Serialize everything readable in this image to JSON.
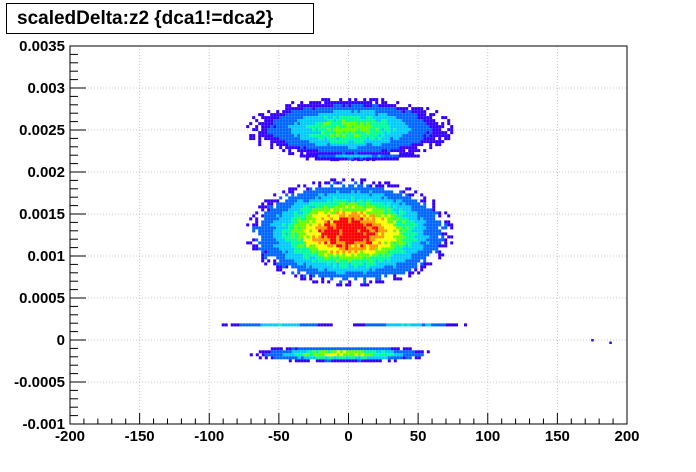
{
  "chart_data": {
    "type": "heatmap",
    "title": "scaledDelta:z2 {dca1!=dca2}",
    "xlabel": "",
    "ylabel": "",
    "xlim": [
      -200,
      200
    ],
    "ylim": [
      -0.001,
      0.0035
    ],
    "x_ticks": [
      -200,
      -150,
      -100,
      -50,
      0,
      50,
      100,
      150,
      200
    ],
    "x_tick_labels": [
      "-200",
      "-150",
      "-100",
      "-50",
      "0",
      "50",
      "100",
      "150",
      "200"
    ],
    "y_ticks": [
      -0.001,
      -0.0005,
      0,
      0.0005,
      0.001,
      0.0015,
      0.002,
      0.0025,
      0.003,
      0.0035
    ],
    "y_tick_labels": [
      "-0.001",
      "-0.0005",
      "0",
      "0.0005",
      "0.001",
      "0.0015",
      "0.002",
      "0.0025",
      "0.003",
      "0.0035"
    ],
    "grid": true,
    "colormap": [
      "#3300ff",
      "#0066ff",
      "#00ccff",
      "#00ff99",
      "#66ff00",
      "#ffff00",
      "#ff9900",
      "#ff0000"
    ],
    "clusters": [
      {
        "x_center": 0,
        "x_half_width": 70,
        "y_center": 0.00253,
        "y_half_height": 0.00035,
        "peak": 0.55
      },
      {
        "x_center": 5,
        "x_half_width": 45,
        "y_center": 0.0022,
        "y_half_height": 4e-05,
        "peak": 0.35
      },
      {
        "x_center": 0,
        "x_half_width": 70,
        "y_center": 0.0013,
        "y_half_height": 0.0006,
        "peak": 1.0
      },
      {
        "x_center": -50,
        "x_half_width": 40,
        "y_center": 0.0002,
        "y_half_height": 3e-05,
        "peak": 0.35
      },
      {
        "x_center": 40,
        "x_half_width": 42,
        "y_center": 0.0002,
        "y_half_height": 3e-05,
        "peak": 0.35
      },
      {
        "x_center": -5,
        "x_half_width": 63,
        "y_center": -0.00015,
        "y_half_height": 9e-05,
        "peak": 0.7
      }
    ],
    "outliers": [
      {
        "x": 175,
        "y": 0.0
      },
      {
        "x": 188,
        "y": -3e-05
      }
    ]
  }
}
